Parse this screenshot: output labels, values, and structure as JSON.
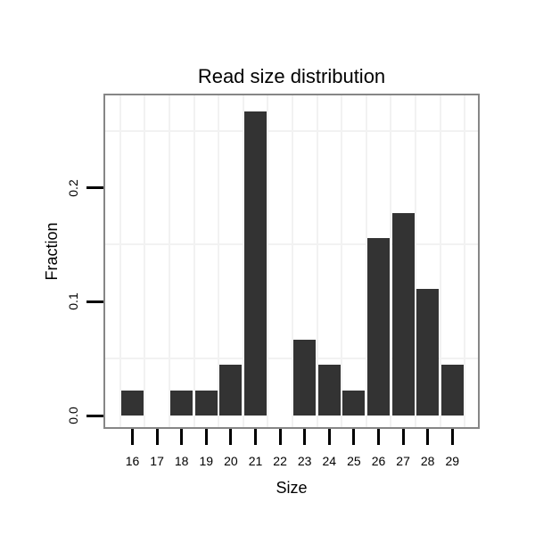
{
  "chart_data": {
    "type": "bar",
    "title": "Read size distribution",
    "xlabel": "Size",
    "ylabel": "Fraction",
    "categories": [
      "16",
      "17",
      "18",
      "19",
      "20",
      "21",
      "22",
      "23",
      "24",
      "25",
      "26",
      "27",
      "28",
      "29"
    ],
    "values": [
      0.0222,
      0,
      0.0222,
      0.0222,
      0.0444,
      0.2667,
      0,
      0.0667,
      0.0444,
      0.0222,
      0.1556,
      0.1778,
      0.1111,
      0.0444
    ],
    "y_ticks": [
      0.0,
      0.1,
      0.2
    ],
    "y_tick_labels": [
      "0.0",
      "0.1",
      "0.2"
    ],
    "minor_y_gridlines": [
      0.05,
      0.15,
      0.25
    ],
    "ylim": [
      -0.01,
      0.281
    ],
    "grid": "minor-only",
    "legend": "none",
    "bar_color": "#333333",
    "panel_border_color": "#868686",
    "gridline_color": "#f2f2f2",
    "tick_color": "#000000",
    "text_color": "#000000",
    "background_color": "#ffffff"
  }
}
